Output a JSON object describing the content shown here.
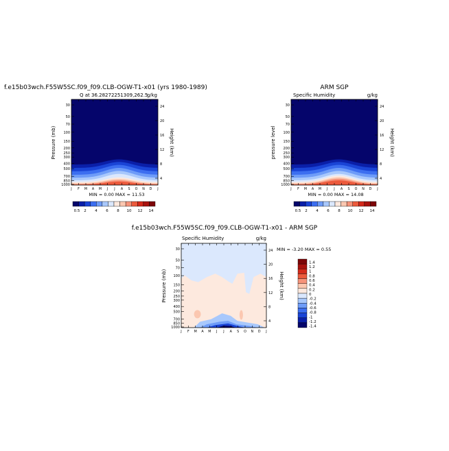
{
  "colors": {
    "seq": [
      "#05056b",
      "#0a1fa8",
      "#1a44d6",
      "#3c6ef0",
      "#6e9cf8",
      "#a8c8fc",
      "#dbe8fd",
      "#fde9de",
      "#fbc7b0",
      "#f6937a",
      "#ec5a3c",
      "#d42a1b",
      "#a9120e",
      "#7d0608"
    ],
    "diff": [
      "#05056b",
      "#0a1fa8",
      "#1a44d6",
      "#3c6ef0",
      "#6e9cf8",
      "#a8c8fc",
      "#dbe8fd",
      "#fde9de",
      "#fbc7b0",
      "#f6937a",
      "#ec5a3c",
      "#d42a1b",
      "#a9120e",
      "#7d0608"
    ]
  },
  "chart_data": [
    {
      "type": "heatmap",
      "title": "f.e15b03wch.F55W5SC.f09_f09.CLB-OGW-T1-x01 (yrs 1980-1989)",
      "subtitle_left": "Q at 36.28272251309,262.5",
      "subtitle_right": "g/kg",
      "xlabel": "",
      "ylabel": "Pressure (mb)",
      "ylabel_right": "Height (km)",
      "x_ticks": [
        "J",
        "F",
        "M",
        "A",
        "M",
        "J",
        "J",
        "A",
        "S",
        "O",
        "N",
        "D",
        "J"
      ],
      "y_ticks": [
        "30",
        "50",
        "70",
        "100",
        "150",
        "200",
        "250",
        "300",
        "400",
        "500",
        "700",
        "850",
        "1000"
      ],
      "y_ticks_right": [
        "24",
        "20",
        "16",
        "12",
        "8",
        "4"
      ],
      "stats": "MIN =    0.00 MAX =   11.53",
      "min": 0.0,
      "max": 11.53,
      "colorbar_labels": [
        "0.5",
        "2",
        "4",
        "6",
        "8",
        "10",
        "12",
        "14"
      ],
      "colorbar_levels": [
        0.5,
        1,
        2,
        3,
        4,
        5,
        6,
        7,
        8,
        9,
        10,
        11,
        12,
        13,
        14
      ]
    },
    {
      "type": "heatmap",
      "title": "ARM SGP",
      "subtitle_left": "Specific Humidity",
      "subtitle_right": "g/kg",
      "xlabel": "",
      "ylabel": "pressure level",
      "ylabel_right": "Height (km)",
      "x_ticks": [
        "J",
        "F",
        "M",
        "A",
        "M",
        "J",
        "J",
        "A",
        "S",
        "O",
        "N",
        "D",
        "J"
      ],
      "y_ticks": [
        "30",
        "50",
        "70",
        "100",
        "150",
        "200",
        "250",
        "300",
        "400",
        "500",
        "700",
        "850",
        "1000"
      ],
      "y_ticks_right": [
        "24",
        "20",
        "16",
        "12",
        "8",
        "4"
      ],
      "stats": "MIN =    0.00 MAX =   14.08",
      "min": 0.0,
      "max": 14.08,
      "colorbar_labels": [
        "0.5",
        "2",
        "4",
        "6",
        "8",
        "10",
        "12",
        "14"
      ],
      "colorbar_levels": [
        0.5,
        1,
        2,
        3,
        4,
        5,
        6,
        7,
        8,
        9,
        10,
        11,
        12,
        13,
        14
      ]
    },
    {
      "type": "heatmap",
      "title": "f.e15b03wch.F55W5SC.f09_f09.CLB-OGW-T1-x01 - ARM SGP",
      "subtitle_left": "Specific Humidity",
      "subtitle_right": "g/kg",
      "xlabel": "",
      "ylabel": "Pressure (mb)",
      "ylabel_right": "Height (km)",
      "x_ticks": [
        "J",
        "F",
        "M",
        "A",
        "M",
        "J",
        "J",
        "A",
        "S",
        "O",
        "N",
        "D",
        "J"
      ],
      "y_ticks": [
        "30",
        "50",
        "70",
        "100",
        "150",
        "200",
        "250",
        "300",
        "400",
        "500",
        "700",
        "850",
        "1000"
      ],
      "y_ticks_right": [
        "24",
        "20",
        "16",
        "12",
        "8",
        "4"
      ],
      "stats": "MIN =   -3.20 MAX =    0.55",
      "min": -3.2,
      "max": 0.55,
      "colorbar_labels": [
        "1.4",
        "1.2",
        "1",
        "0.8",
        "0.6",
        "0.4",
        "0.2",
        "0",
        "-0.2",
        "-0.4",
        "-0.6",
        "-0.8",
        "-1",
        "-1.2",
        "-1.4"
      ],
      "colorbar_levels": [
        -1.4,
        -1.2,
        -1,
        -0.8,
        -0.6,
        -0.4,
        -0.2,
        0,
        0.2,
        0.4,
        0.6,
        0.8,
        1,
        1.2,
        1.4
      ]
    }
  ]
}
